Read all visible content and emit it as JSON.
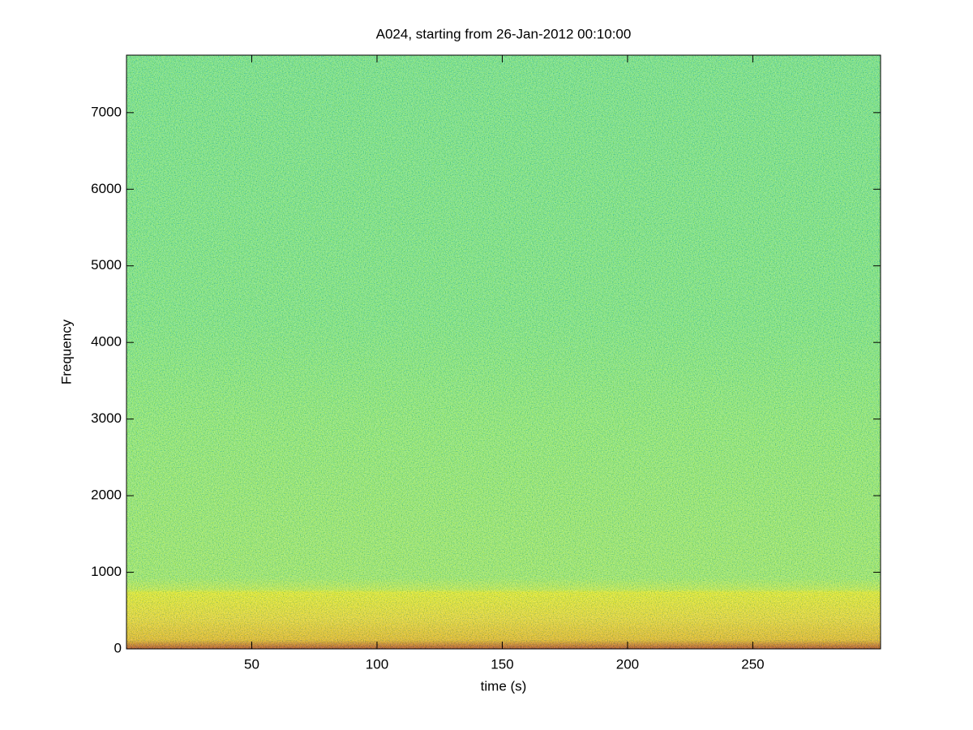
{
  "chart_data": {
    "type": "spectrogram",
    "title": "A024, starting from 26-Jan-2012 00:10:00",
    "x_label": "time (s)",
    "y_label": "Frequency",
    "xlim": [
      0,
      301
    ],
    "ylim": [
      0,
      7750
    ],
    "xticks": [
      50,
      100,
      150,
      200,
      250
    ],
    "yticks": [
      0,
      1000,
      2000,
      3000,
      4000,
      5000,
      6000,
      7000
    ]
  }
}
